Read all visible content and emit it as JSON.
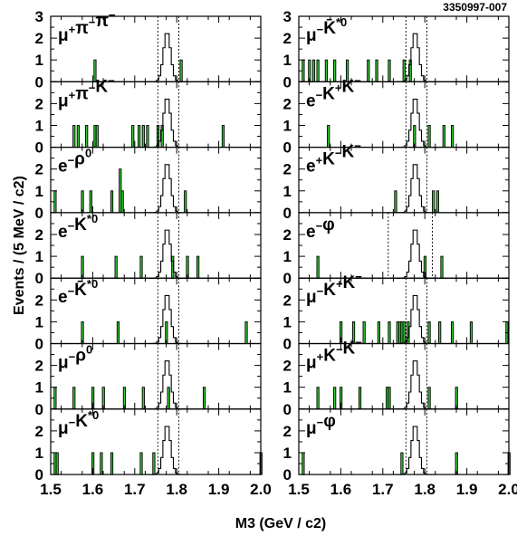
{
  "figure_code": "3350997-007",
  "chart_data": {
    "type": "histogram-grid",
    "xlabel": "M3 (GeV / c2)",
    "ylabel": "Events / (5 MeV / c2)",
    "xlim": [
      1.5,
      2.0
    ],
    "ylim": [
      0,
      3
    ],
    "x_ticks": [
      "1.5",
      "1.6",
      "1.7",
      "1.8",
      "1.9",
      "2.0"
    ],
    "y_ticks": [
      "0",
      "1",
      "2",
      "3"
    ],
    "bin_width": 0.005,
    "signal_peak": 1.777,
    "panels": [
      {
        "col": 0,
        "row": 0,
        "label": [
          "μ",
          "+",
          "π",
          "−",
          "π",
          "−"
        ],
        "cuts": [
          1.755,
          1.805
        ],
        "data": [
          [
            1.603,
            1
          ],
          [
            1.808,
            1
          ]
        ]
      },
      {
        "col": 0,
        "row": 1,
        "label": [
          "μ",
          "+",
          "π",
          "−",
          "K",
          "−"
        ],
        "cuts": [
          1.755,
          1.805
        ],
        "data": [
          [
            1.553,
            1
          ],
          [
            1.563,
            1
          ],
          [
            1.583,
            1
          ],
          [
            1.603,
            1
          ],
          [
            1.608,
            1
          ],
          [
            1.693,
            1
          ],
          [
            1.708,
            1
          ],
          [
            1.718,
            1
          ],
          [
            1.728,
            1
          ],
          [
            1.753,
            1
          ],
          [
            1.763,
            1
          ],
          [
            1.908,
            1
          ]
        ]
      },
      {
        "col": 0,
        "row": 2,
        "label": [
          "e",
          "−",
          "ρ",
          "0"
        ],
        "cuts": [
          1.755,
          1.805
        ],
        "data": [
          [
            1.508,
            1
          ],
          [
            1.573,
            1
          ],
          [
            1.593,
            1
          ],
          [
            1.643,
            1
          ],
          [
            1.663,
            2
          ],
          [
            1.668,
            1
          ],
          [
            1.818,
            1
          ]
        ]
      },
      {
        "col": 0,
        "row": 3,
        "label": [
          "e",
          "−",
          "K",
          "*0"
        ],
        "cuts": [
          1.755,
          1.805
        ],
        "data": [
          [
            1.573,
            1
          ],
          [
            1.653,
            1
          ],
          [
            1.713,
            1
          ],
          [
            1.788,
            1
          ],
          [
            1.823,
            1
          ],
          [
            1.848,
            1
          ]
        ]
      },
      {
        "col": 0,
        "row": 4,
        "label": [
          "e",
          "−",
          "K̄",
          "*0"
        ],
        "cuts": [
          1.755,
          1.805
        ],
        "data": [
          [
            1.573,
            1
          ],
          [
            1.658,
            1
          ],
          [
            1.773,
            1
          ],
          [
            1.963,
            1
          ]
        ]
      },
      {
        "col": 0,
        "row": 5,
        "label": [
          "μ",
          "−",
          "ρ",
          "0"
        ],
        "cuts": [
          1.755,
          1.805
        ],
        "data": [
          [
            1.508,
            1
          ],
          [
            1.553,
            1
          ],
          [
            1.598,
            1
          ],
          [
            1.623,
            1
          ],
          [
            1.673,
            1
          ],
          [
            1.718,
            1
          ],
          [
            1.778,
            1
          ],
          [
            1.863,
            1
          ]
        ]
      },
      {
        "col": 0,
        "row": 6,
        "label": [
          "μ",
          "−",
          "K",
          "*0"
        ],
        "cuts": [
          1.755,
          1.805
        ],
        "data": [
          [
            1.508,
            1
          ],
          [
            1.513,
            1
          ],
          [
            1.598,
            1
          ],
          [
            1.618,
            1
          ],
          [
            1.643,
            1
          ],
          [
            1.713,
            1
          ],
          [
            1.743,
            1
          ],
          [
            1.998,
            1
          ]
        ]
      },
      {
        "col": 1,
        "row": 0,
        "label": [
          "μ",
          "−",
          "K̄",
          "*0"
        ],
        "cuts": [
          1.755,
          1.805
        ],
        "data": [
          [
            1.508,
            1
          ],
          [
            1.523,
            1
          ],
          [
            1.533,
            1
          ],
          [
            1.543,
            1
          ],
          [
            1.563,
            1
          ],
          [
            1.583,
            1
          ],
          [
            1.613,
            1
          ],
          [
            1.663,
            1
          ],
          [
            1.683,
            1
          ],
          [
            1.713,
            1
          ],
          [
            1.748,
            1
          ],
          [
            1.763,
            1
          ]
        ]
      },
      {
        "col": 1,
        "row": 1,
        "label": [
          "e",
          "−",
          "K",
          "+",
          "K",
          "−"
        ],
        "cuts": [
          1.755,
          1.805
        ],
        "data": [
          [
            1.568,
            1
          ],
          [
            1.773,
            1
          ],
          [
            1.808,
            1
          ],
          [
            1.843,
            1
          ],
          [
            1.863,
            1
          ]
        ]
      },
      {
        "col": 1,
        "row": 2,
        "label": [
          "e",
          "+",
          "K",
          "−",
          "K",
          "−"
        ],
        "cuts": [
          1.755,
          1.805
        ],
        "data": [
          [
            1.728,
            1
          ],
          [
            1.818,
            1
          ],
          [
            1.828,
            1
          ]
        ]
      },
      {
        "col": 1,
        "row": 3,
        "label": [
          "e",
          "−",
          "φ"
        ],
        "cuts": [
          1.713,
          1.818
        ],
        "data": [
          [
            1.543,
            1
          ],
          [
            1.798,
            1
          ],
          [
            1.838,
            1
          ]
        ]
      },
      {
        "col": 1,
        "row": 4,
        "label": [
          "μ",
          "−",
          "K",
          "+",
          "K",
          "−"
        ],
        "cuts": [
          1.755,
          1.805
        ],
        "data": [
          [
            1.598,
            1
          ],
          [
            1.628,
            1
          ],
          [
            1.653,
            1
          ],
          [
            1.688,
            1
          ],
          [
            1.713,
            1
          ],
          [
            1.733,
            1
          ],
          [
            1.738,
            1
          ],
          [
            1.743,
            1
          ],
          [
            1.748,
            1
          ],
          [
            1.758,
            1
          ],
          [
            1.808,
            1
          ],
          [
            1.833,
            1
          ],
          [
            1.863,
            1
          ],
          [
            1.908,
            1
          ],
          [
            1.993,
            1
          ]
        ]
      },
      {
        "col": 1,
        "row": 5,
        "label": [
          "μ",
          "+",
          "K",
          "−",
          "K",
          "−"
        ],
        "cuts": [
          1.755,
          1.805
        ],
        "data": [
          [
            1.543,
            1
          ],
          [
            1.583,
            1
          ],
          [
            1.598,
            1
          ],
          [
            1.643,
            1
          ],
          [
            1.708,
            1
          ],
          [
            1.713,
            1
          ],
          [
            1.808,
            1
          ],
          [
            1.873,
            1
          ]
        ]
      },
      {
        "col": 1,
        "row": 6,
        "label": [
          "μ",
          "−",
          "φ"
        ],
        "cuts": [
          1.755,
          1.805
        ],
        "data": [
          [
            1.508,
            1
          ],
          [
            1.743,
            1
          ],
          [
            1.873,
            1
          ],
          [
            1.998,
            1
          ]
        ]
      }
    ]
  }
}
